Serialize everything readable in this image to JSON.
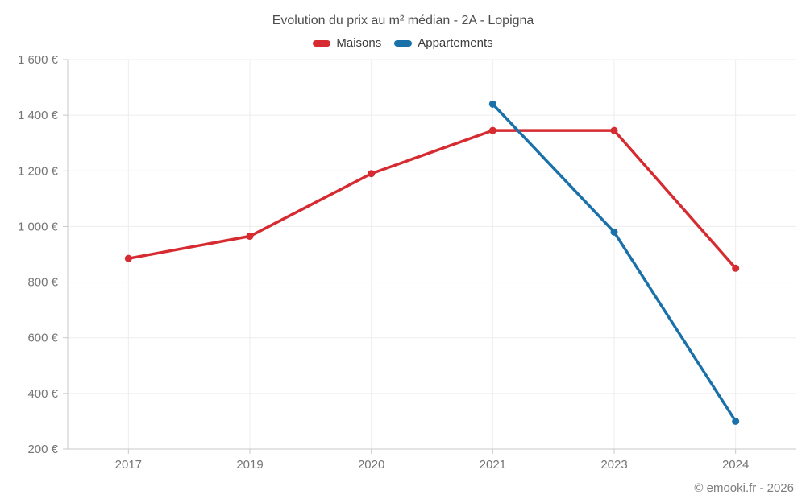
{
  "chart_data": {
    "type": "line",
    "title": "Evolution du prix au m² médian - 2A - Lopigna",
    "xlabel": "",
    "ylabel": "",
    "categories": [
      "2017",
      "2019",
      "2020",
      "2021",
      "2023",
      "2024"
    ],
    "series": [
      {
        "name": "Maisons",
        "color": "#d62b30",
        "values": [
          885,
          965,
          1190,
          1345,
          1345,
          850
        ]
      },
      {
        "name": "Appartements",
        "color": "#1a71a9",
        "values": [
          null,
          null,
          null,
          1440,
          980,
          300
        ]
      }
    ],
    "ylim": [
      200,
      1600
    ],
    "y_ticks": [
      200,
      400,
      600,
      800,
      1000,
      1200,
      1400,
      1600
    ],
    "y_tick_labels": [
      "200 €",
      "400 €",
      "600 €",
      "800 €",
      "1 000 €",
      "1 200 €",
      "1 400 €",
      "1 600 €"
    ],
    "grid": true,
    "legend_position": "top",
    "copyright": "© emooki.fr - 2026"
  }
}
